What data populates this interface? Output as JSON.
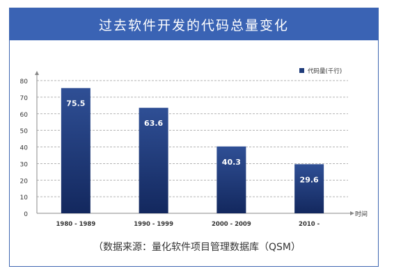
{
  "title": "过去软件开发的代码总量变化",
  "source": "（数据来源：量化软件项目管理数据库（QSM）",
  "chart_data": {
    "type": "bar",
    "categories": [
      "1980 - 1989",
      "1990 - 1999",
      "2000 - 2009",
      "2010 -"
    ],
    "values": [
      75.5,
      63.6,
      40.3,
      29.6
    ],
    "value_labels": [
      "75.5",
      "63.6",
      "40.3",
      "29.6"
    ],
    "series": [
      {
        "name": "代码量(千行)",
        "values": [
          75.5,
          63.6,
          40.3,
          29.6
        ]
      }
    ],
    "xlabel": "时间",
    "ylabel": "",
    "ylim": [
      0,
      80
    ],
    "yticks": [
      "0",
      "10",
      "20",
      "30",
      "40",
      "50",
      "60",
      "70",
      "80"
    ],
    "grid": true,
    "legend_position": "top-right",
    "colors": {
      "bar_top": "#2f4f95",
      "bar_bottom": "#13285e",
      "grid": "#9a9a9a",
      "legend_marker": "#1f3c7a"
    }
  }
}
